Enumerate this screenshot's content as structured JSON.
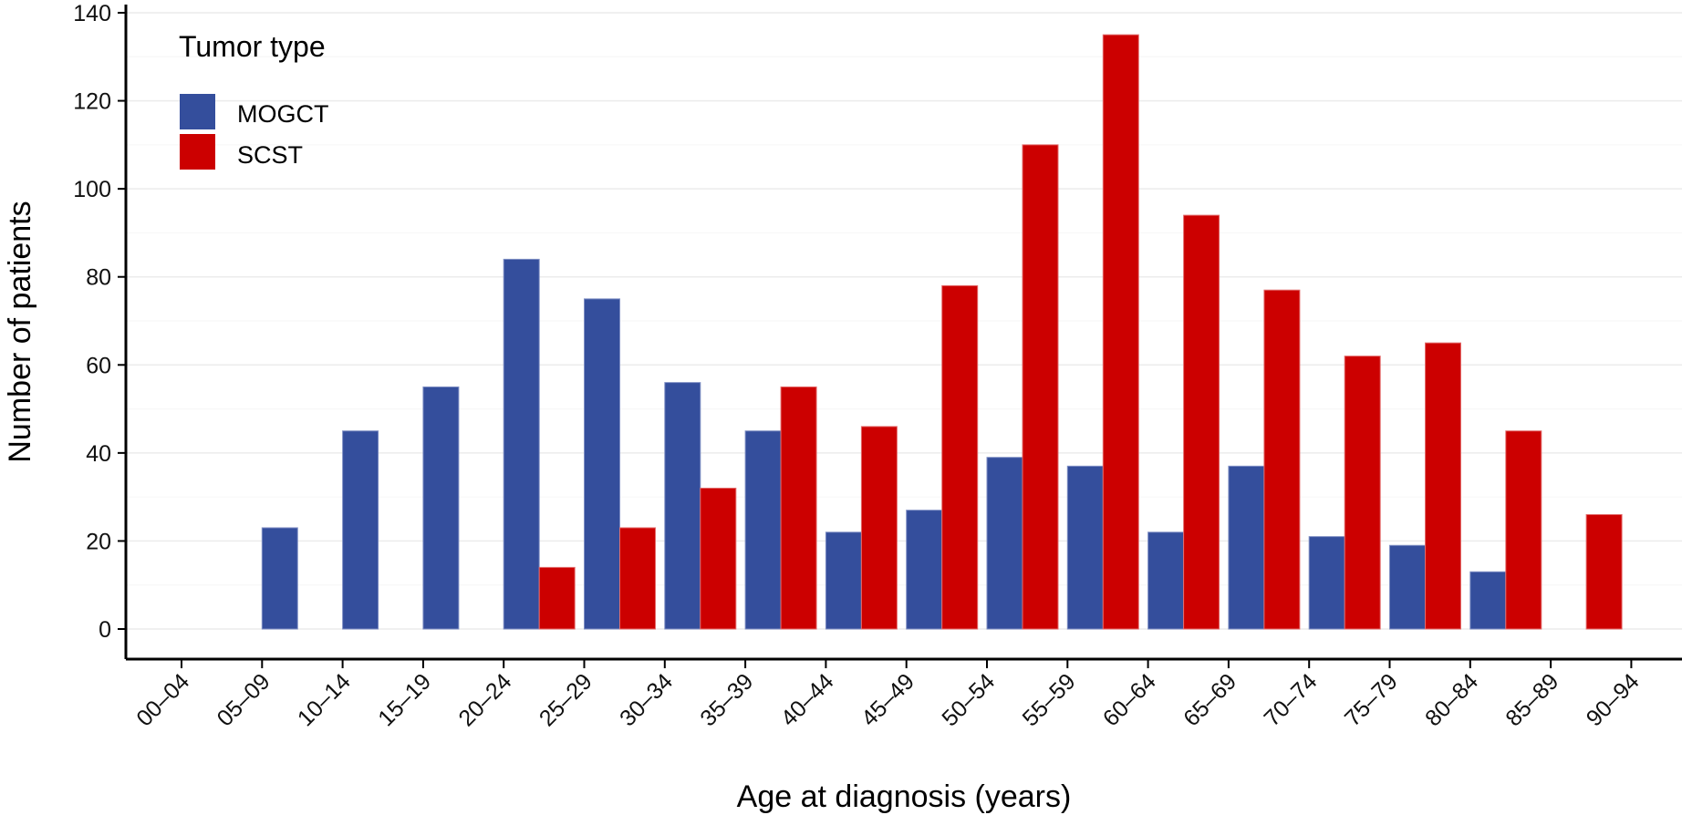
{
  "chart_data": {
    "type": "bar",
    "title": "",
    "xlabel": "Age at diagnosis (years)",
    "ylabel": "Number of patients",
    "ylim": [
      0,
      140
    ],
    "yticks": [
      0,
      20,
      40,
      60,
      80,
      100,
      120,
      140
    ],
    "grid": true,
    "legend": {
      "title": "Tumor type",
      "placement": "top-left"
    },
    "categories": [
      "00–04",
      "05–09",
      "10–14",
      "15–19",
      "20–24",
      "25–29",
      "30–34",
      "35–39",
      "40–44",
      "45–49",
      "50–54",
      "55–59",
      "60–64",
      "65–69",
      "70–74",
      "75–79",
      "80–84",
      "85–89",
      "90–94"
    ],
    "series": [
      {
        "name": "MOGCT",
        "color": "#344e9c",
        "values": [
          0,
          23,
          45,
          55,
          84,
          75,
          56,
          45,
          22,
          27,
          39,
          37,
          22,
          37,
          21,
          19,
          13,
          0,
          0
        ]
      },
      {
        "name": "SCST",
        "color": "#cc0000",
        "values": [
          0,
          0,
          0,
          0,
          14,
          23,
          32,
          55,
          46,
          78,
          110,
          135,
          94,
          77,
          62,
          65,
          45,
          26,
          0
        ]
      }
    ]
  }
}
